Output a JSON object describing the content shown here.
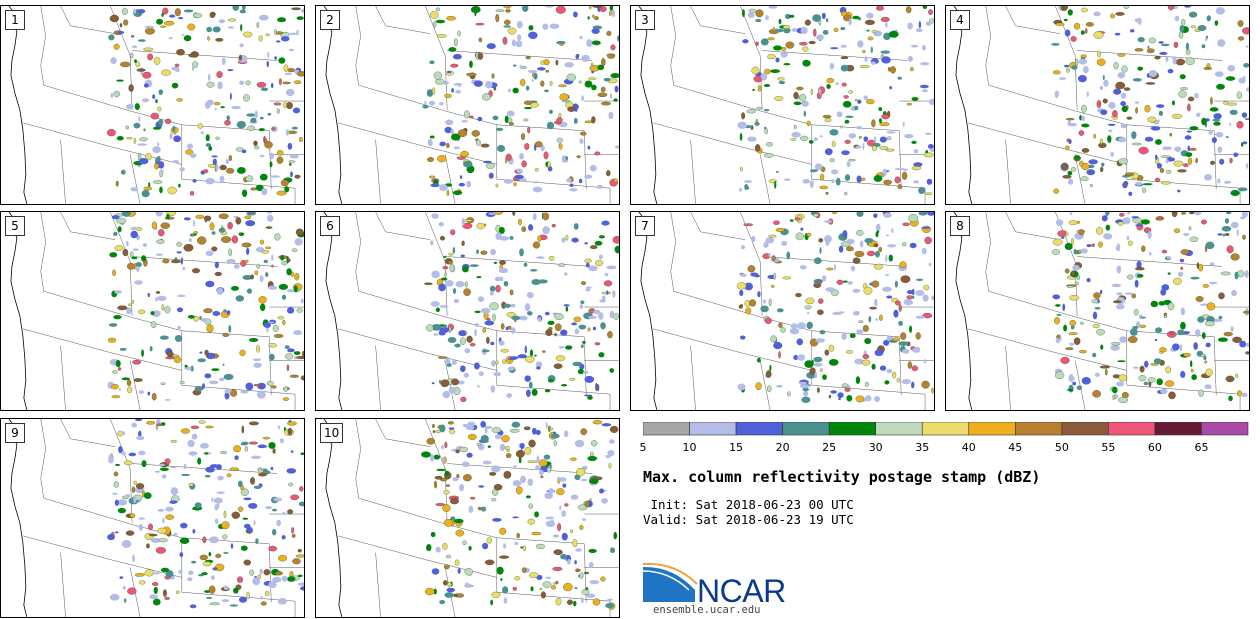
{
  "panels": [
    {
      "label": "1"
    },
    {
      "label": "2"
    },
    {
      "label": "3"
    },
    {
      "label": "4"
    },
    {
      "label": "5"
    },
    {
      "label": "6"
    },
    {
      "label": "7"
    },
    {
      "label": "8"
    },
    {
      "label": "9"
    },
    {
      "label": "10"
    }
  ],
  "colorbar": {
    "colors": [
      "#a6a6a6",
      "#b4bce8",
      "#5060d8",
      "#4a9190",
      "#00860a",
      "#bfd9bd",
      "#eddb6a",
      "#efae1e",
      "#b8802f",
      "#8c5a3a",
      "#ee5578",
      "#651a35",
      "#a84aa8"
    ],
    "ticks": [
      "5",
      "10",
      "15",
      "20",
      "25",
      "30",
      "35",
      "40",
      "45",
      "50",
      "55",
      "60",
      "65"
    ]
  },
  "title": "Max. column reflectivity postage stamp (dBZ)",
  "init_line": " Init: Sat 2018-06-23 00 UTC",
  "valid_line": "Valid: Sat 2018-06-23 19 UTC",
  "logo": {
    "text": "NCAR",
    "site": "ensemble.ucar.edu"
  }
}
